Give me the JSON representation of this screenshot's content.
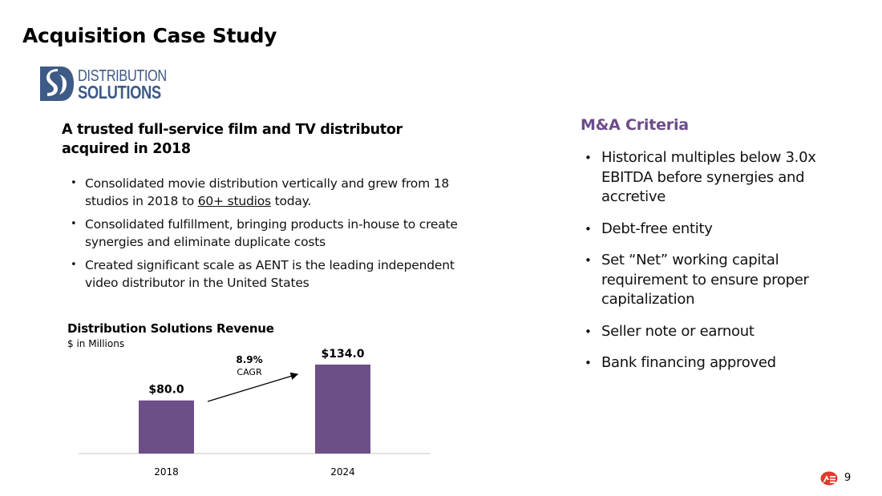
{
  "slide": {
    "title": "Acquisition Case Study",
    "logo": {
      "icon": "distribution-solutions-logo-mark",
      "line1": "DISTRIBUTION",
      "line2": "SOLUTIONS",
      "color": "#3e5a86"
    },
    "left": {
      "heading": "A trusted full-service film and TV distributor acquired in 2018",
      "bullets": [
        {
          "pre": "Consolidated movie distribution vertically and grew from 18 studios in 2018 to ",
          "underlined": "60+ studios",
          "post": " today."
        },
        {
          "text": "Consolidated fulfillment, bringing products in-house to create synergies and eliminate duplicate costs"
        },
        {
          "text": "Created significant scale as AENT is the leading independent video distributor in the United States"
        }
      ]
    },
    "right": {
      "heading": "M&A Criteria",
      "heading_color": "#6b4c8a",
      "bullets": [
        "Historical multiples below 3.0x EBITDA before synergies and accretive",
        "Debt-free entity",
        "Set “Net” working capital requirement to ensure proper capitalization",
        "Seller note or earnout",
        "Bank financing approved"
      ]
    },
    "footer": {
      "logo_icon": "company-logo-icon",
      "page_number": "9"
    }
  },
  "chart_data": {
    "type": "bar",
    "title": "Distribution Solutions Revenue",
    "subtitle": "$ in Millions",
    "categories": [
      "2018",
      "2024"
    ],
    "values": [
      80.0,
      134.0
    ],
    "data_labels": [
      "$80.0",
      "$134.0"
    ],
    "bar_color": "#6d4f87",
    "annotation": {
      "value": "8.9%",
      "label": "CAGR",
      "type": "arrow",
      "from": "2018",
      "to": "2024"
    },
    "xlabel": "",
    "ylabel": "",
    "ylim": [
      0,
      134.0
    ],
    "grid": false,
    "legend": "none"
  }
}
